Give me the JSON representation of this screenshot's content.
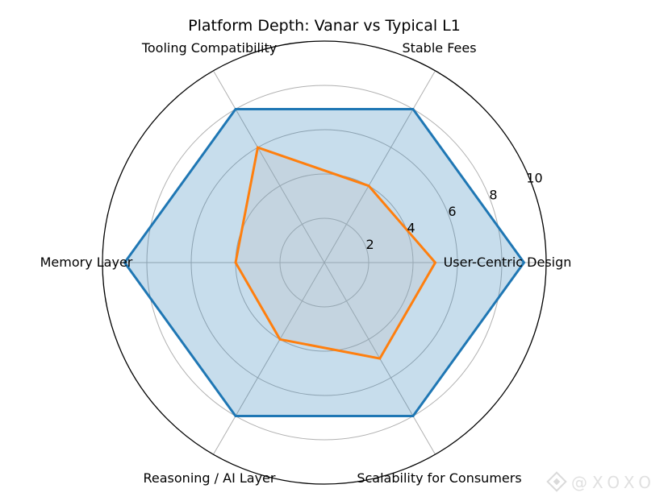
{
  "chart_data": {
    "type": "radar",
    "title": "Platform Depth: Vanar vs Typical L1",
    "categories": [
      "User-Centric Design",
      "Stable Fees",
      "Tooling Compatibility",
      "Memory Layer",
      "Reasoning / AI Layer",
      "Scalability for Consumers"
    ],
    "radial_ticks": [
      "2",
      "4",
      "6",
      "8",
      "10"
    ],
    "radial_range": [
      0,
      10
    ],
    "grid": true,
    "legend": "none",
    "series": [
      {
        "values": [
          9,
          8,
          8,
          9,
          8,
          8
        ],
        "color": "#1f77b4",
        "fill": "#1f77b4"
      },
      {
        "values": [
          5,
          4,
          6,
          4,
          4,
          5
        ],
        "color": "#ff7f0e",
        "fill": "#bcbcbc"
      }
    ]
  },
  "watermark": {
    "text": "@XOXO",
    "icon": "diamond-logo-icon"
  }
}
